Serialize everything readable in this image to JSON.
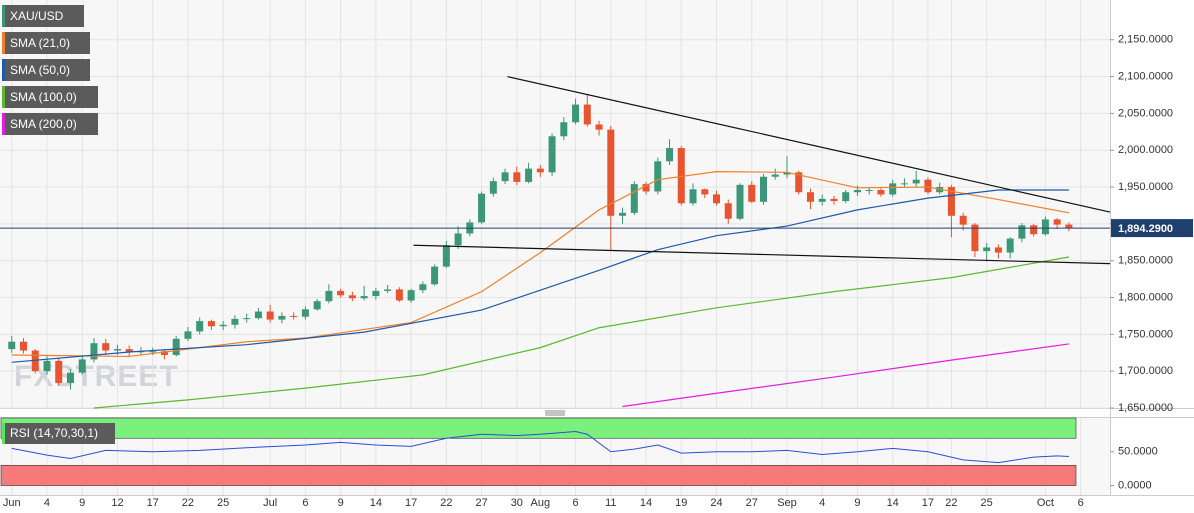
{
  "chart_data": {
    "type": "candlestick",
    "watermark": "FXSTREET",
    "xlim": [
      -1,
      93.5
    ],
    "xticks": [
      {
        "value": 0,
        "label": "Jun"
      },
      {
        "value": 3,
        "label": "4"
      },
      {
        "value": 6,
        "label": "9"
      },
      {
        "value": 9,
        "label": "12"
      },
      {
        "value": 12,
        "label": "17"
      },
      {
        "value": 15,
        "label": "22"
      },
      {
        "value": 18,
        "label": "25"
      },
      {
        "value": 22,
        "label": "Jul"
      },
      {
        "value": 25,
        "label": "6"
      },
      {
        "value": 28,
        "label": "9"
      },
      {
        "value": 31,
        "label": "14"
      },
      {
        "value": 34,
        "label": "17"
      },
      {
        "value": 37,
        "label": "22"
      },
      {
        "value": 40,
        "label": "27"
      },
      {
        "value": 43,
        "label": "30"
      },
      {
        "value": 45,
        "label": "Aug"
      },
      {
        "value": 48,
        "label": "6"
      },
      {
        "value": 51,
        "label": "11"
      },
      {
        "value": 54,
        "label": "14"
      },
      {
        "value": 57,
        "label": "19"
      },
      {
        "value": 60,
        "label": "24"
      },
      {
        "value": 63,
        "label": "27"
      },
      {
        "value": 66,
        "label": "Sep"
      },
      {
        "value": 69,
        "label": "4"
      },
      {
        "value": 72,
        "label": "9"
      },
      {
        "value": 75,
        "label": "14"
      },
      {
        "value": 78,
        "label": "17"
      },
      {
        "value": 80,
        "label": "22"
      },
      {
        "value": 83,
        "label": "25"
      },
      {
        "value": 88,
        "label": "Oct"
      },
      {
        "value": 91,
        "label": "6"
      }
    ],
    "ylim": [
      1650,
      2204
    ],
    "yticks": [
      {
        "value": 1650,
        "label": "1,650.0000"
      },
      {
        "value": 1700,
        "label": "1,700.0000"
      },
      {
        "value": 1750,
        "label": "1,750.0000"
      },
      {
        "value": 1800,
        "label": "1,800.0000"
      },
      {
        "value": 1850,
        "label": "1,850.0000"
      },
      {
        "value": 1900,
        "label": "1,900.0000"
      },
      {
        "value": 1950,
        "label": "1,950.0000"
      },
      {
        "value": 2000,
        "label": "2,000.0000"
      },
      {
        "value": 2050,
        "label": "2,050.0000"
      },
      {
        "value": 2100,
        "label": "2,100.0000"
      },
      {
        "value": 2150,
        "label": "2,150.0000"
      }
    ],
    "grid": true,
    "series": [
      {
        "name": "XAU/USD",
        "color": "#3c9678",
        "up_color": "#3c9678",
        "down_color": "#e8542f",
        "open": [
          1730,
          1740,
          1728,
          1700,
          1714,
          1684,
          1698,
          1716,
          1738,
          1728,
          1730,
          1726,
          1727,
          1727,
          1722,
          1744,
          1754,
          1768,
          1761,
          1763,
          1771,
          1772,
          1781,
          1770,
          1775,
          1774,
          1784,
          1795,
          1809,
          1803,
          1799,
          1802,
          1809,
          1811,
          1796,
          1810,
          1818,
          1842,
          1871,
          1887,
          1902,
          1941,
          1958,
          1970,
          1957,
          1975,
          1970,
          2019,
          2038,
          2062,
          2035,
          2028,
          1911,
          1915,
          1954,
          1944,
          1985,
          2003,
          1928,
          1947,
          1940,
          1928,
          1907,
          1953,
          1930,
          1964,
          1967,
          1970,
          1943,
          1930,
          1934,
          1931,
          1943,
          1946,
          1946,
          1940,
          1955,
          1955,
          1960,
          1943,
          1950,
          1911,
          1899,
          1863,
          1868,
          1861,
          1880,
          1898,
          1886,
          1906,
          1899
        ],
        "high": [
          1748,
          1745,
          1730,
          1722,
          1718,
          1703,
          1722,
          1745,
          1744,
          1736,
          1735,
          1733,
          1732,
          1730,
          1748,
          1760,
          1773,
          1770,
          1768,
          1776,
          1778,
          1786,
          1790,
          1780,
          1780,
          1788,
          1798,
          1818,
          1812,
          1808,
          1816,
          1813,
          1817,
          1814,
          1812,
          1822,
          1845,
          1877,
          1897,
          1906,
          1944,
          1963,
          1975,
          1978,
          1983,
          1980,
          2023,
          2045,
          2070,
          2075,
          2040,
          2033,
          1922,
          1958,
          1957,
          1990,
          2015,
          2006,
          1955,
          1948,
          1945,
          1933,
          1955,
          1958,
          1968,
          1975,
          1992,
          1972,
          1948,
          1940,
          1938,
          1946,
          1952,
          1950,
          1950,
          1960,
          1962,
          1972,
          1963,
          1956,
          1953,
          1915,
          1901,
          1874,
          1872,
          1882,
          1901,
          1900,
          1910,
          1908,
          1902
        ],
        "low": [
          1725,
          1724,
          1697,
          1695,
          1680,
          1675,
          1695,
          1712,
          1722,
          1722,
          1720,
          1722,
          1722,
          1716,
          1720,
          1741,
          1750,
          1756,
          1756,
          1758,
          1766,
          1770,
          1766,
          1765,
          1770,
          1770,
          1782,
          1792,
          1800,
          1795,
          1796,
          1797,
          1806,
          1794,
          1793,
          1806,
          1816,
          1840,
          1866,
          1883,
          1900,
          1937,
          1954,
          1953,
          1955,
          1964,
          1965,
          2014,
          2035,
          2032,
          2020,
          1863,
          1900,
          1912,
          1940,
          1940,
          1980,
          1925,
          1925,
          1935,
          1925,
          1900,
          1905,
          1928,
          1926,
          1960,
          1962,
          1940,
          1920,
          1925,
          1926,
          1928,
          1938,
          1940,
          1937,
          1937,
          1950,
          1950,
          1940,
          1940,
          1882,
          1891,
          1855,
          1849,
          1853,
          1853,
          1875,
          1883,
          1884,
          1893,
          1890
        ],
        "close": [
          1740,
          1728,
          1700,
          1714,
          1684,
          1698,
          1716,
          1738,
          1728,
          1730,
          1726,
          1727,
          1727,
          1722,
          1744,
          1754,
          1768,
          1761,
          1763,
          1771,
          1772,
          1781,
          1770,
          1775,
          1774,
          1784,
          1795,
          1809,
          1803,
          1799,
          1802,
          1809,
          1811,
          1796,
          1810,
          1818,
          1842,
          1871,
          1887,
          1902,
          1941,
          1958,
          1970,
          1957,
          1975,
          1970,
          2019,
          2038,
          2062,
          2035,
          2028,
          1911,
          1915,
          1954,
          1944,
          1985,
          2003,
          1928,
          1947,
          1940,
          1928,
          1907,
          1953,
          1930,
          1964,
          1967,
          1970,
          1943,
          1930,
          1934,
          1931,
          1943,
          1946,
          1946,
          1940,
          1955,
          1955,
          1960,
          1943,
          1950,
          1911,
          1899,
          1863,
          1868,
          1861,
          1880,
          1898,
          1886,
          1906,
          1899,
          1894
        ]
      },
      {
        "name": "SMA (21,0)",
        "color": "#f07f2a",
        "x": [
          0,
          10,
          20,
          25,
          34,
          40,
          45,
          50,
          55,
          60,
          66,
          72,
          78,
          84,
          90
        ],
        "values": [
          1722,
          1720,
          1740,
          1745,
          1766,
          1808,
          1861,
          1919,
          1960,
          1971,
          1970,
          1949,
          1950,
          1933,
          1915
        ]
      },
      {
        "name": "SMA (50,0)",
        "color": "#1e5aa8",
        "x": [
          0,
          10,
          20,
          30,
          40,
          45,
          50,
          55,
          60,
          66,
          72,
          78,
          84,
          90
        ],
        "values": [
          1712,
          1726,
          1736,
          1753,
          1783,
          1810,
          1837,
          1865,
          1884,
          1897,
          1919,
          1935,
          1946,
          1946
        ]
      },
      {
        "name": "SMA (100,0)",
        "color": "#5cb82e",
        "x": [
          7,
          15,
          25,
          35,
          45,
          50,
          60,
          70,
          80,
          90
        ],
        "values": [
          1650,
          1661,
          1677,
          1695,
          1732,
          1759,
          1786,
          1808,
          1827,
          1855
        ]
      },
      {
        "name": "SMA (200,0)",
        "color": "#e020e0",
        "x": [
          52,
          60,
          70,
          80,
          90
        ],
        "values": [
          1652,
          1670,
          1692,
          1715,
          1737
        ]
      }
    ],
    "trendlines": [
      {
        "color": "#111111",
        "x": [
          42.2,
          93.5
        ],
        "values": [
          2100,
          1916
        ]
      },
      {
        "color": "#111111",
        "x": [
          34.2,
          93.5
        ],
        "values": [
          1871,
          1846
        ]
      }
    ],
    "price_label": {
      "value": 1894.29,
      "label": "1,894.2900",
      "color": "#1f3f6f"
    },
    "rsi": {
      "name": "RSI (14,70,30,1)",
      "color": "#2a4fd6",
      "band_color": "#5be35b",
      "x": [
        0,
        3,
        5,
        8,
        12,
        16,
        20,
        25,
        28,
        31,
        34,
        37,
        40,
        43,
        45,
        48,
        49,
        51,
        53,
        55,
        57,
        60,
        63,
        66,
        69,
        72,
        75,
        78,
        81,
        84,
        87,
        89,
        90
      ],
      "values": [
        55,
        45,
        40,
        52,
        50,
        52,
        56,
        60,
        64,
        60,
        58,
        70,
        76,
        74,
        76,
        80,
        76,
        50,
        54,
        60,
        48,
        50,
        50,
        52,
        46,
        50,
        55,
        50,
        38,
        34,
        42,
        44,
        43
      ],
      "ylim": [
        -14,
        100
      ],
      "yticks": [
        {
          "value": 50,
          "label": "50.0000"
        },
        {
          "value": 0,
          "label": "0.0000"
        }
      ],
      "overbought": [
        70,
        100
      ],
      "oversold": [
        0,
        30
      ],
      "overbought_color": "#7cf07c",
      "oversold_color": "#f77a7a"
    }
  }
}
